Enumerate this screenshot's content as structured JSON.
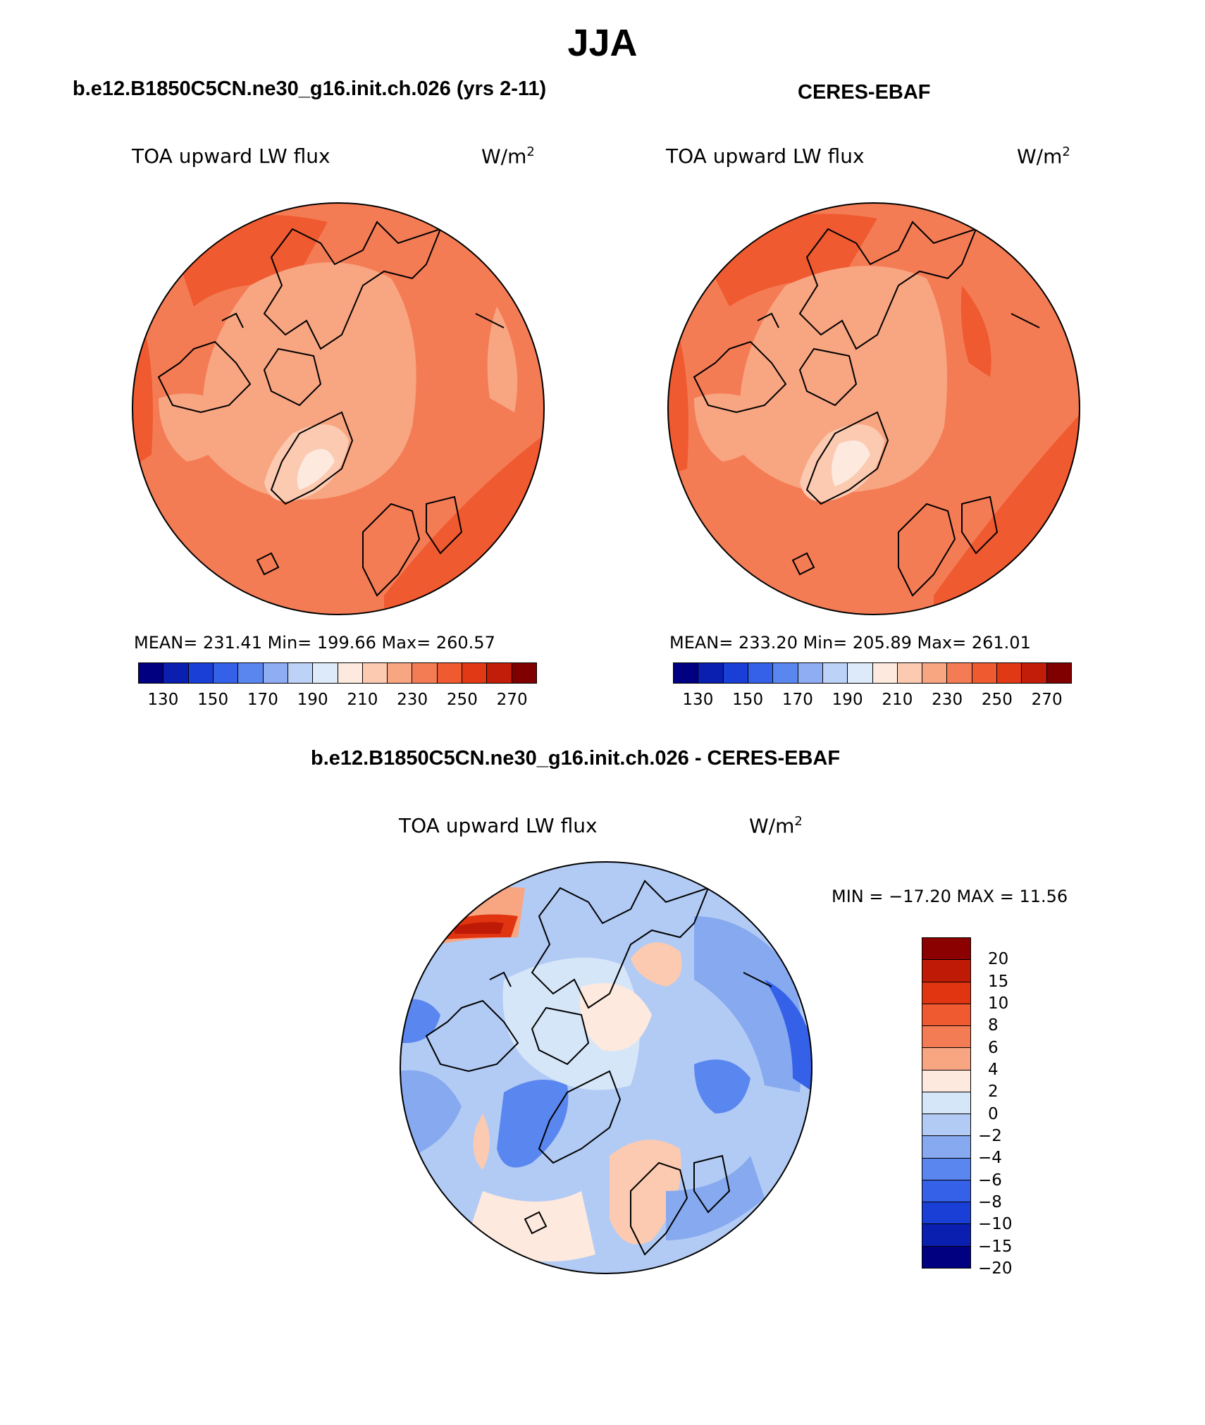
{
  "title": "JJA",
  "panels": [
    {
      "subtitle": "b.e12.B1850C5CN.ne30_g16.init.ch.026 (yrs 2-11)",
      "var_label": "TOA upward LW flux",
      "units_base": "W/m",
      "units_exp": "2",
      "stats": "MEAN= 231.41   Min= 199.66   Max= 260.57"
    },
    {
      "subtitle": "CERES-EBAF",
      "var_label": "TOA upward LW flux",
      "units_base": "W/m",
      "units_exp": "2",
      "stats": "MEAN= 233.20   Min= 205.89   Max= 261.01"
    }
  ],
  "diff": {
    "subtitle": "b.e12.B1850C5CN.ne30_g16.init.ch.026 - CERES-EBAF",
    "var_label": "TOA upward LW flux",
    "units_base": "W/m",
    "units_exp": "2",
    "minmax": "MIN = −17.20 MAX =   11.56"
  },
  "colorbar_abs": {
    "colors": [
      "#000080",
      "#0a1fb0",
      "#1a3fd6",
      "#3461e8",
      "#5a86ef",
      "#8fadf3",
      "#bdd2f7",
      "#dceaf9",
      "#fde9dd",
      "#fbcab1",
      "#f8a582",
      "#f47c55",
      "#ef5a30",
      "#e13915",
      "#c21d08",
      "#800000"
    ],
    "ticks": [
      "130",
      "150",
      "170",
      "190",
      "210",
      "230",
      "250",
      "270"
    ]
  },
  "colorbar_diff": {
    "colors": [
      "#8b0000",
      "#bf1a06",
      "#e03510",
      "#ef5a30",
      "#f47c55",
      "#f8a582",
      "#fde9dd",
      "#d6e6f9",
      "#b2cbf5",
      "#86a9ef",
      "#5a86ef",
      "#3461e8",
      "#1a3fd6",
      "#0a1fb0",
      "#000080"
    ],
    "ticks": [
      "20",
      "15",
      "10",
      "8",
      "6",
      "4",
      "2",
      "0",
      "−2",
      "−4",
      "−6",
      "−8",
      "−10",
      "−15",
      "−20"
    ]
  }
}
